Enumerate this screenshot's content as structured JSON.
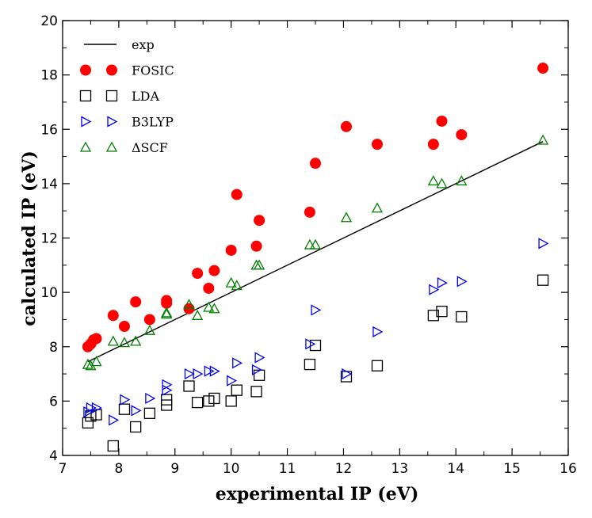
{
  "chart_data": {
    "type": "scatter",
    "title": "",
    "xlabel": "experimental IP  (eV)",
    "ylabel": "calculated IP  (eV)",
    "xlim": [
      7,
      16
    ],
    "ylim": [
      4,
      20
    ],
    "xticks": [
      7,
      8,
      9,
      10,
      11,
      12,
      13,
      14,
      15,
      16
    ],
    "yticks": [
      4,
      6,
      8,
      10,
      12,
      14,
      16,
      18,
      20
    ],
    "legend_position": "top-left",
    "grid": false,
    "exp_x": [
      7.45,
      15.55
    ],
    "series": [
      {
        "name": "exp",
        "marker": "line",
        "color": "#000000",
        "x": [
          7.45,
          15.55
        ],
        "y": [
          7.45,
          15.55
        ]
      },
      {
        "name": "FOSIC",
        "marker": "circle",
        "color": "#ff0000",
        "x": [
          7.45,
          7.5,
          7.55,
          7.6,
          7.9,
          8.1,
          8.3,
          8.55,
          8.85,
          8.85,
          9.25,
          9.4,
          9.6,
          9.7,
          10.0,
          10.1,
          10.45,
          10.5,
          11.4,
          11.5,
          12.05,
          12.6,
          13.6,
          13.75,
          14.1,
          15.55
        ],
        "y": [
          8.0,
          8.1,
          8.25,
          8.3,
          9.15,
          8.75,
          9.65,
          9.0,
          9.7,
          9.6,
          9.4,
          10.7,
          10.15,
          10.8,
          11.55,
          13.6,
          11.7,
          12.65,
          12.95,
          14.75,
          16.1,
          15.45,
          15.45,
          16.3,
          15.8,
          18.25
        ]
      },
      {
        "name": "LDA",
        "marker": "square",
        "color": "#000000",
        "x": [
          7.45,
          7.5,
          7.6,
          7.9,
          8.1,
          8.3,
          8.55,
          8.85,
          8.85,
          9.25,
          9.4,
          9.6,
          9.7,
          10.0,
          10.1,
          10.45,
          10.5,
          11.4,
          11.5,
          12.05,
          12.6,
          13.6,
          13.75,
          14.1,
          15.55
        ],
        "y": [
          5.2,
          5.45,
          5.5,
          4.35,
          5.7,
          5.05,
          5.55,
          5.85,
          6.05,
          6.55,
          5.95,
          6.0,
          6.1,
          6.0,
          6.4,
          6.35,
          6.95,
          7.35,
          8.05,
          6.9,
          7.3,
          9.15,
          9.3,
          9.1,
          10.45
        ]
      },
      {
        "name": "B3LYP",
        "marker": "triangle-right",
        "color": "#0000ff",
        "x": [
          7.45,
          7.5,
          7.6,
          7.9,
          8.1,
          8.3,
          8.55,
          8.85,
          8.85,
          9.25,
          9.4,
          9.6,
          9.7,
          10.0,
          10.1,
          10.45,
          10.5,
          11.4,
          11.5,
          12.05,
          12.6,
          13.6,
          13.75,
          14.1,
          15.55
        ],
        "y": [
          5.6,
          5.75,
          5.75,
          5.3,
          6.05,
          5.65,
          6.1,
          6.4,
          6.6,
          7.0,
          7.0,
          7.1,
          7.1,
          6.75,
          7.4,
          7.15,
          7.6,
          8.1,
          9.35,
          7.0,
          8.55,
          10.1,
          10.35,
          10.4,
          11.8
        ]
      },
      {
        "name": "ΔSCF",
        "marker": "triangle-up",
        "color": "#008000",
        "x": [
          7.45,
          7.5,
          7.6,
          7.9,
          8.1,
          8.3,
          8.55,
          8.85,
          8.85,
          9.25,
          9.4,
          9.6,
          9.7,
          10.0,
          10.1,
          10.45,
          10.5,
          11.4,
          11.5,
          12.05,
          12.6,
          13.6,
          13.75,
          14.1,
          15.55
        ],
        "y": [
          7.35,
          7.3,
          7.45,
          8.2,
          8.15,
          8.2,
          8.6,
          9.2,
          9.25,
          9.55,
          9.15,
          9.45,
          9.4,
          10.35,
          10.25,
          11.0,
          11.0,
          11.75,
          11.75,
          12.75,
          13.1,
          14.1,
          14.0,
          14.1,
          15.6
        ]
      }
    ]
  }
}
